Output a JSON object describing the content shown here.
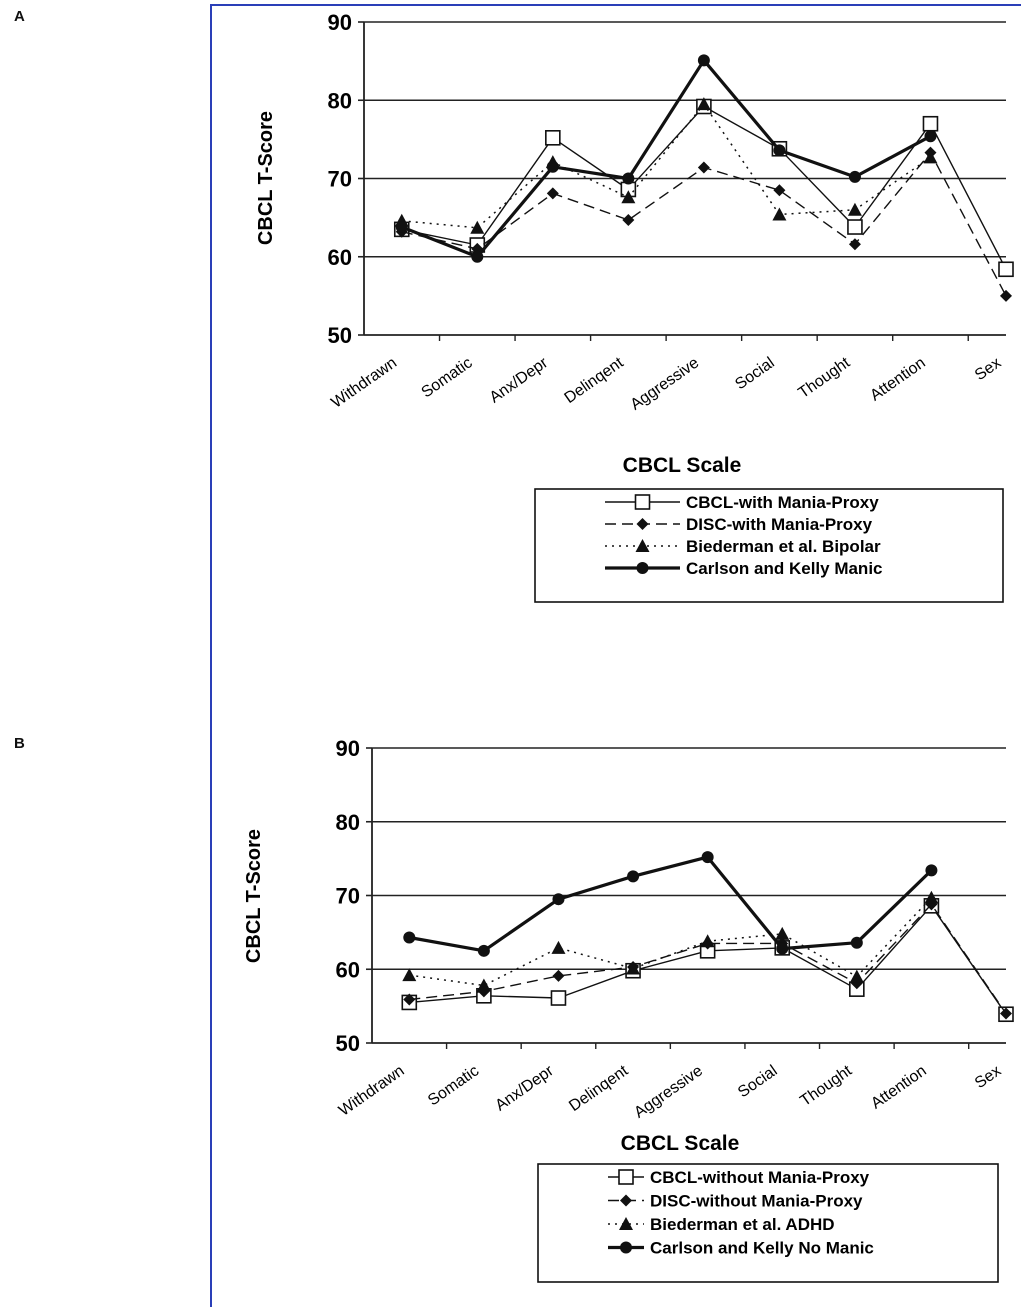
{
  "panels": [
    {
      "letter": "A"
    },
    {
      "letter": "B"
    }
  ],
  "chart_data": [
    {
      "type": "line",
      "categories": [
        "Withdrawn",
        "Somatic",
        "Anx/Depr",
        "Delinqent",
        "Aggressive",
        "Social",
        "Thought",
        "Attention",
        "Sex"
      ],
      "ylabel": "CBCL T-Score",
      "xlabel": "CBCL Scale",
      "ylim": [
        50,
        90
      ],
      "yticks": [
        50,
        60,
        70,
        80,
        90
      ],
      "grid": true,
      "legend_position": "bottom-right",
      "series": [
        {
          "name": "CBCL-with Mania-Proxy",
          "marker": "square",
          "dash": "solid",
          "values": [
            63.5,
            61.5,
            75.2,
            68.6,
            79.2,
            73.8,
            63.8,
            77.0,
            58.4
          ]
        },
        {
          "name": "DISC-with Mania-Proxy",
          "marker": "diamond",
          "dash": "dashed",
          "values": [
            63.2,
            61.0,
            68.1,
            64.7,
            71.4,
            68.5,
            61.6,
            73.3,
            55.0
          ]
        },
        {
          "name": "Biederman et al. Bipolar",
          "marker": "triangle",
          "dash": "dotted",
          "values": [
            64.6,
            63.7,
            72.1,
            67.6,
            79.5,
            65.4,
            66.0,
            72.7,
            null
          ]
        },
        {
          "name": "Carlson and Kelly Manic",
          "marker": "circle",
          "dash": "bold",
          "values": [
            63.8,
            60.0,
            71.5,
            70.0,
            85.1,
            73.6,
            70.2,
            75.4,
            null
          ]
        }
      ]
    },
    {
      "type": "line",
      "categories": [
        "Withdrawn",
        "Somatic",
        "Anx/Depr",
        "Delinqent",
        "Aggressive",
        "Social",
        "Thought",
        "Attention",
        "Sex"
      ],
      "ylabel": "CBCL T-Score",
      "xlabel": "CBCL Scale",
      "ylim": [
        50,
        90
      ],
      "yticks": [
        50,
        60,
        70,
        80,
        90
      ],
      "grid": true,
      "legend_position": "bottom-right",
      "series": [
        {
          "name": "CBCL-without Mania-Proxy",
          "marker": "square",
          "dash": "solid",
          "values": [
            55.5,
            56.4,
            56.1,
            59.8,
            62.5,
            62.9,
            57.3,
            68.6,
            53.9
          ]
        },
        {
          "name": "DISC-without Mania-Proxy",
          "marker": "diamond",
          "dash": "dashed",
          "values": [
            55.9,
            57.0,
            59.1,
            60.3,
            63.5,
            63.5,
            58.1,
            68.8,
            54.0
          ]
        },
        {
          "name": "Biederman et al. ADHD",
          "marker": "triangle",
          "dash": "dotted",
          "values": [
            59.2,
            57.8,
            62.9,
            60.1,
            63.8,
            64.8,
            59.0,
            69.7,
            null
          ]
        },
        {
          "name": "Carlson and Kelly No Manic",
          "marker": "circle",
          "dash": "bold",
          "values": [
            64.3,
            62.5,
            69.5,
            72.6,
            75.2,
            62.8,
            63.6,
            73.4,
            null
          ]
        }
      ]
    }
  ]
}
